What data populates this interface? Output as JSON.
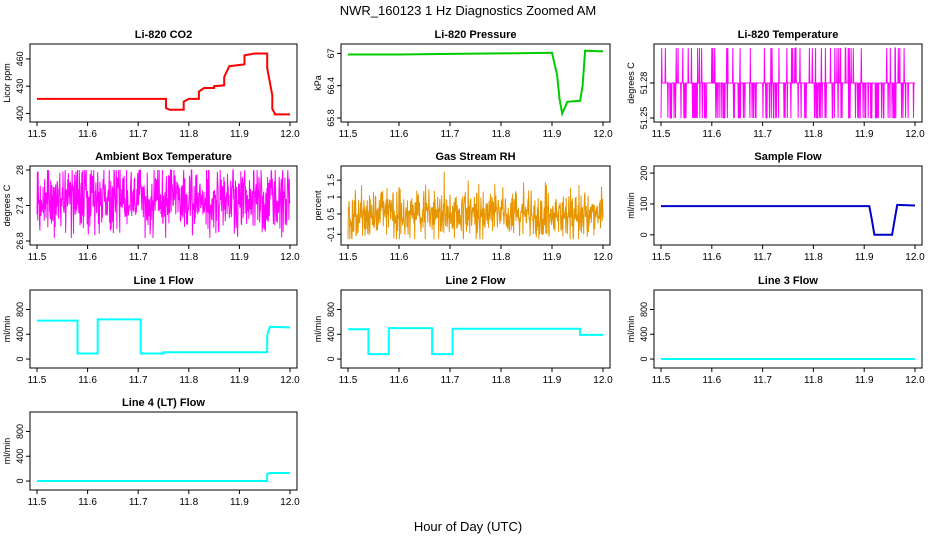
{
  "figure": {
    "title": "NWR_160123  1 Hz Diagnostics Zoomed AM",
    "xlabel": "Hour of Day (UTC)"
  },
  "chart_data": [
    {
      "type": "line",
      "title": "Li-820 CO2",
      "ylabel": "Licor ppm",
      "color": "#ff0000",
      "xlim": [
        11.5,
        12.0
      ],
      "ylim": [
        395,
        472
      ],
      "yticks": [
        400,
        430,
        460
      ],
      "xticks": [
        11.5,
        11.6,
        11.7,
        11.8,
        11.9,
        12.0
      ],
      "series": [
        {
          "x": [
            11.5,
            11.755,
            11.755,
            11.762,
            11.762,
            11.79,
            11.79,
            11.8,
            11.8,
            11.82,
            11.82,
            11.83,
            11.83,
            11.85,
            11.85,
            11.87,
            11.87,
            11.88,
            11.88,
            11.91,
            11.91,
            11.93,
            11.93,
            11.955,
            11.955,
            11.965,
            11.965,
            11.97,
            11.97,
            12.0
          ],
          "y": [
            416,
            416,
            406,
            404,
            404,
            404,
            413,
            416,
            416,
            416,
            424,
            428,
            428,
            428,
            430,
            431,
            440,
            452,
            452,
            454,
            464,
            466,
            466,
            466,
            450,
            420,
            405,
            400,
            399,
            399
          ]
        }
      ]
    },
    {
      "type": "line",
      "title": "Li-820 Pressure",
      "ylabel": "kPa",
      "color": "#00cc00",
      "xlim": [
        11.5,
        12.0
      ],
      "ylim": [
        65.8,
        67.1
      ],
      "yticks": [
        65.8,
        66.4,
        67.0
      ],
      "xticks": [
        11.5,
        11.6,
        11.7,
        11.8,
        11.9,
        12.0
      ],
      "series": [
        {
          "x": [
            11.5,
            11.6,
            11.7,
            11.8,
            11.9,
            11.91,
            11.915,
            11.92,
            11.93,
            11.955,
            11.96,
            11.965,
            11.99,
            12.0
          ],
          "y": [
            66.98,
            66.98,
            66.99,
            67.0,
            67.01,
            66.6,
            66.15,
            65.88,
            66.1,
            66.12,
            66.4,
            67.05,
            67.04,
            67.04
          ]
        }
      ]
    },
    {
      "type": "line",
      "title": "Li-820 Temperature",
      "ylabel": "degrees C",
      "color": "#ff00ff",
      "xlim": [
        11.5,
        12.0
      ],
      "ylim": [
        51.25,
        51.31
      ],
      "yticks": [
        51.25,
        51.28
      ],
      "xticks": [
        11.5,
        11.6,
        11.7,
        11.8,
        11.9,
        12.0
      ],
      "noise": {
        "values": [
          51.25,
          51.28,
          51.31
        ],
        "baseline": 51.28
      }
    },
    {
      "type": "line",
      "title": "Ambient Box Temperature",
      "ylabel": "degrees C",
      "color": "#ff00ff",
      "xlim": [
        11.5,
        12.0
      ],
      "ylim": [
        26.8,
        28.0
      ],
      "yticks": [
        26.8,
        27.4,
        28.0
      ],
      "xticks": [
        11.5,
        11.6,
        11.7,
        11.8,
        11.9,
        12.0
      ],
      "noise": {
        "center": 27.5,
        "spread": 0.3,
        "min": 26.85,
        "max": 28.0
      }
    },
    {
      "type": "line",
      "title": "Gas Stream RH",
      "ylabel": "percent",
      "color": "#e69500",
      "xlim": [
        11.5,
        12.0
      ],
      "ylim": [
        -0.3,
        1.8
      ],
      "yticks": [
        -0.1,
        0.5,
        1.0,
        1.5
      ],
      "xticks": [
        11.5,
        11.6,
        11.7,
        11.8,
        11.9,
        12.0
      ],
      "noise": {
        "center": 0.5,
        "spread": 0.35,
        "min": -0.25,
        "max": 1.75
      }
    },
    {
      "type": "line",
      "title": "Sample Flow",
      "ylabel": "ml/min",
      "color": "#0000cc",
      "xlim": [
        11.5,
        12.0
      ],
      "ylim": [
        -20,
        210
      ],
      "yticks": [
        0,
        100,
        200
      ],
      "xticks": [
        11.5,
        11.6,
        11.7,
        11.8,
        11.9,
        12.0
      ],
      "series": [
        {
          "x": [
            11.5,
            11.6,
            11.7,
            11.8,
            11.91,
            11.915,
            11.92,
            11.955,
            11.96,
            11.965,
            12.0
          ],
          "y": [
            93,
            93,
            93,
            93,
            93,
            50,
            0,
            0,
            50,
            97,
            95
          ]
        }
      ]
    },
    {
      "type": "line",
      "title": "Line 1 Flow",
      "ylabel": "ml/min",
      "color": "#00ffff",
      "xlim": [
        11.5,
        12.0
      ],
      "ylim": [
        -80,
        1050
      ],
      "yticks": [
        0,
        400,
        800
      ],
      "xticks": [
        11.5,
        11.6,
        11.7,
        11.8,
        11.9,
        12.0
      ],
      "series": [
        {
          "x": [
            11.5,
            11.58,
            11.58,
            11.62,
            11.62,
            11.705,
            11.705,
            11.75,
            11.75,
            11.955,
            11.955,
            11.96,
            12.0
          ],
          "y": [
            620,
            620,
            90,
            90,
            640,
            640,
            90,
            90,
            110,
            110,
            380,
            520,
            510
          ]
        }
      ]
    },
    {
      "type": "line",
      "title": "Line 2 Flow",
      "ylabel": "ml/min",
      "color": "#00ffff",
      "xlim": [
        11.5,
        12.0
      ],
      "ylim": [
        -80,
        1050
      ],
      "yticks": [
        0,
        400,
        800
      ],
      "xticks": [
        11.5,
        11.6,
        11.7,
        11.8,
        11.9,
        12.0
      ],
      "series": [
        {
          "x": [
            11.5,
            11.54,
            11.54,
            11.58,
            11.58,
            11.665,
            11.665,
            11.705,
            11.705,
            11.955,
            11.955,
            12.0
          ],
          "y": [
            480,
            480,
            80,
            80,
            500,
            500,
            80,
            80,
            490,
            490,
            390,
            390
          ]
        }
      ]
    },
    {
      "type": "line",
      "title": "Line 3 Flow",
      "ylabel": "ml/min",
      "color": "#00ffff",
      "xlim": [
        11.5,
        12.0
      ],
      "ylim": [
        -80,
        1050
      ],
      "yticks": [
        0,
        400,
        800
      ],
      "xticks": [
        11.5,
        11.6,
        11.7,
        11.8,
        11.9,
        12.0
      ],
      "series": [
        {
          "x": [
            11.5,
            12.0
          ],
          "y": [
            0,
            0
          ]
        }
      ]
    },
    {
      "type": "line",
      "title": "Line 4 (LT) Flow",
      "ylabel": "ml/min",
      "color": "#00ffff",
      "xlim": [
        11.5,
        12.0
      ],
      "ylim": [
        -80,
        1050
      ],
      "yticks": [
        0,
        400,
        800
      ],
      "xticks": [
        11.5,
        11.6,
        11.7,
        11.8,
        11.9,
        12.0
      ],
      "series": [
        {
          "x": [
            11.5,
            11.955,
            11.955,
            11.96,
            12.0
          ],
          "y": [
            0,
            0,
            110,
            130,
            130
          ]
        }
      ]
    }
  ]
}
